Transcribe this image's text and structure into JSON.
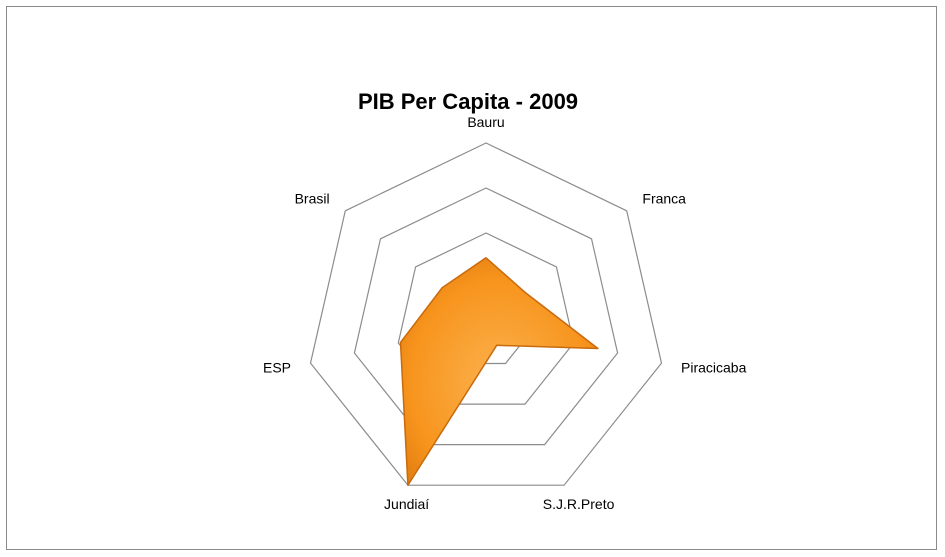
{
  "chart_data": {
    "type": "radar",
    "title": "PIB Per Capita - 2009",
    "categories": [
      "Bauru",
      "Franca",
      "Piracicaba",
      "S.J.R.Preto",
      "Jundiaí",
      "ESP",
      "Brasil"
    ],
    "series": [
      {
        "values": [
          1.45,
          1.1,
          2.55,
          0.55,
          4.0,
          1.95,
          1.25
        ]
      }
    ],
    "rmax": 4,
    "grid_rings": 4,
    "legend": "none",
    "colors": {
      "fill": "#f7941d",
      "fill_light": "#fbb24e",
      "fill_dark": "#e07b0f",
      "stroke": "#c96a0c",
      "grid": "#8c8c8c"
    }
  }
}
